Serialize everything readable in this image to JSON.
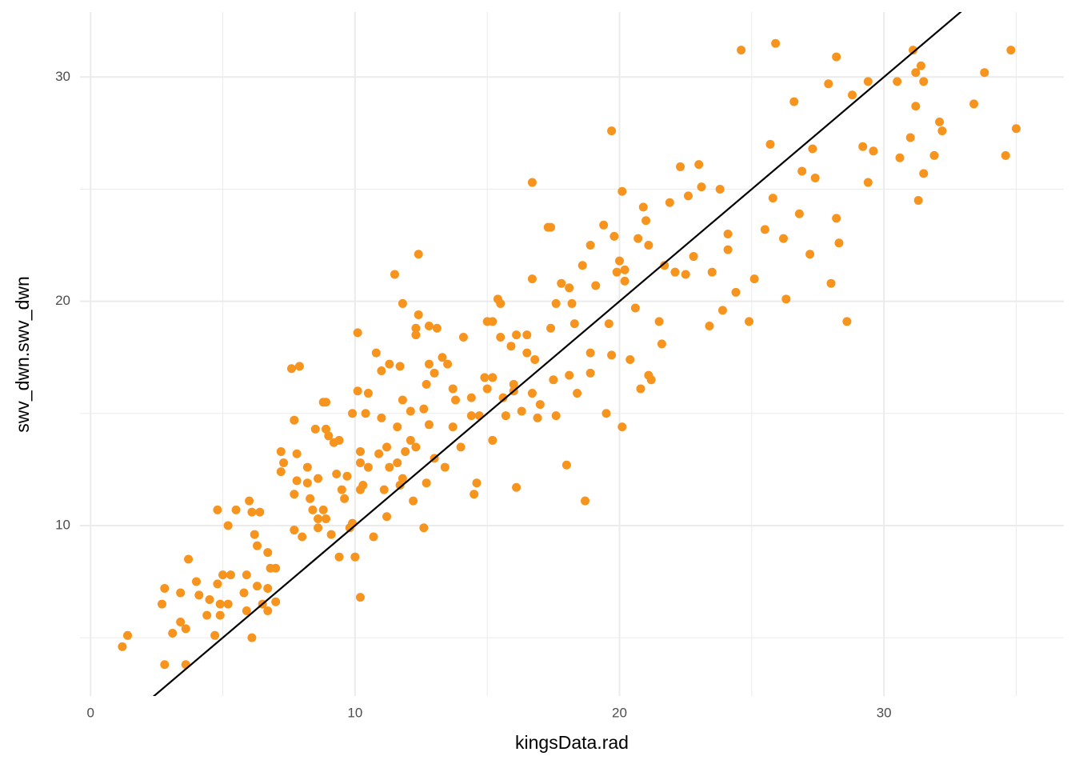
{
  "chart_data": {
    "type": "scatter",
    "x_label": "kingsData.rad",
    "y_label": "swv_dwn.swv_dwn",
    "color": "#f7941d",
    "xlim": [
      -0.4,
      36.8
    ],
    "ylim": [
      2.4,
      32.9
    ],
    "xticks": [
      0,
      10,
      20,
      30
    ],
    "yticks": [
      10,
      20,
      30
    ],
    "x_minor_grid": [
      5,
      15,
      25,
      35
    ],
    "y_minor_grid": [
      5,
      15,
      25
    ],
    "grid": true,
    "line": {
      "slope": 1,
      "intercept": 0,
      "color": "#000000"
    },
    "x": [
      1.2,
      1.4,
      2.8,
      2.7,
      2.8,
      3.1,
      3.4,
      3.4,
      3.6,
      3.6,
      3.7,
      4.0,
      4.1,
      4.4,
      4.5,
      4.7,
      4.8,
      4.8,
      4.9,
      4.9,
      5.0,
      5.2,
      5.2,
      5.3,
      5.5,
      5.8,
      5.9,
      5.9,
      6.0,
      6.1,
      6.1,
      6.2,
      6.3,
      6.3,
      6.4,
      6.5,
      6.7,
      6.7,
      6.7,
      6.8,
      7.0,
      7.0,
      7.2,
      7.2,
      7.3,
      7.6,
      7.7,
      7.7,
      7.7,
      7.9,
      7.8,
      7.8,
      8.0,
      8.2,
      8.2,
      8.3,
      8.4,
      8.5,
      8.6,
      8.6,
      8.6,
      8.8,
      8.8,
      8.9,
      8.9,
      8.9,
      9.0,
      9.1,
      9.2,
      9.3,
      9.4,
      9.4,
      9.5,
      9.6,
      9.7,
      9.8,
      9.9,
      9.9,
      10.0,
      10.1,
      10.1,
      10.2,
      10.2,
      10.2,
      10.2,
      10.3,
      10.4,
      10.5,
      10.5,
      10.7,
      10.8,
      10.9,
      11.0,
      11.0,
      11.1,
      11.2,
      11.2,
      11.3,
      11.3,
      11.5,
      11.6,
      11.6,
      11.7,
      11.7,
      11.8,
      11.8,
      11.8,
      11.9,
      12.1,
      12.1,
      12.2,
      12.3,
      12.3,
      12.3,
      12.4,
      12.4,
      12.6,
      12.6,
      12.7,
      12.7,
      12.8,
      12.8,
      12.8,
      13.0,
      13.0,
      13.1,
      13.3,
      13.4,
      13.5,
      13.7,
      13.7,
      13.8,
      14.0,
      14.1,
      14.4,
      14.4,
      14.5,
      14.6,
      14.7,
      14.9,
      15.0,
      15.0,
      15.2,
      15.2,
      15.2,
      15.4,
      15.5,
      15.5,
      15.6,
      15.7,
      15.9,
      16.0,
      16.0,
      16.1,
      16.1,
      16.3,
      16.5,
      16.5,
      16.7,
      16.7,
      16.7,
      16.8,
      16.9,
      17.0,
      17.3,
      17.4,
      17.4,
      17.5,
      17.6,
      17.6,
      17.8,
      18.0,
      18.1,
      18.1,
      18.2,
      18.3,
      18.4,
      18.6,
      18.7,
      18.9,
      18.9,
      18.9,
      19.1,
      19.4,
      19.5,
      19.6,
      19.7,
      19.7,
      19.8,
      19.9,
      20.0,
      20.1,
      20.1,
      20.2,
      20.2,
      20.4,
      20.6,
      20.7,
      20.8,
      20.9,
      21.0,
      21.1,
      21.1,
      21.2,
      21.5,
      21.6,
      21.7,
      21.9,
      22.1,
      22.3,
      22.5,
      22.6,
      22.8,
      23.0,
      23.1,
      23.4,
      23.5,
      23.8,
      23.9,
      24.1,
      24.1,
      24.4,
      24.6,
      24.9,
      25.1,
      25.5,
      25.7,
      25.8,
      25.9,
      26.2,
      26.3,
      26.6,
      26.8,
      26.9,
      27.2,
      27.3,
      27.4,
      27.9,
      28.0,
      28.2,
      28.2,
      28.3,
      28.6,
      28.8,
      29.2,
      29.4,
      29.6,
      29.4,
      30.5,
      30.6,
      31.0,
      31.1,
      31.2,
      31.2,
      31.3,
      31.4,
      31.5,
      31.5,
      31.9,
      32.1,
      32.2,
      33.4,
      33.8,
      34.6,
      34.8,
      35.0
    ],
    "values": [
      4.6,
      5.1,
      7.2,
      6.5,
      3.8,
      5.2,
      7.0,
      5.7,
      5.4,
      3.8,
      8.5,
      7.5,
      6.9,
      6.0,
      6.7,
      5.1,
      10.7,
      7.4,
      6.0,
      6.5,
      7.8,
      6.5,
      10.0,
      7.8,
      10.7,
      7.0,
      7.8,
      6.2,
      11.1,
      10.6,
      5.0,
      9.6,
      7.3,
      9.1,
      10.6,
      6.5,
      7.2,
      6.2,
      8.8,
      8.1,
      8.1,
      6.6,
      13.3,
      12.4,
      12.8,
      17.0,
      11.4,
      14.7,
      9.8,
      17.1,
      12.0,
      13.2,
      9.5,
      12.6,
      11.9,
      11.2,
      10.7,
      14.3,
      12.1,
      9.9,
      10.3,
      15.5,
      10.7,
      15.5,
      14.3,
      10.3,
      14.0,
      9.6,
      13.7,
      12.3,
      13.8,
      8.6,
      11.6,
      11.2,
      12.2,
      9.9,
      10.1,
      15.0,
      8.6,
      18.6,
      16.0,
      13.3,
      6.8,
      11.6,
      12.8,
      11.8,
      15.0,
      12.6,
      15.9,
      9.5,
      17.7,
      13.2,
      14.8,
      16.9,
      11.6,
      10.4,
      13.5,
      17.2,
      12.6,
      21.2,
      12.8,
      14.4,
      17.1,
      11.8,
      12.1,
      19.9,
      15.6,
      13.3,
      15.1,
      13.8,
      11.1,
      13.5,
      18.5,
      18.8,
      22.1,
      19.4,
      15.2,
      9.9,
      11.9,
      16.3,
      17.2,
      14.5,
      18.9,
      13.0,
      16.8,
      18.8,
      17.5,
      12.6,
      17.2,
      14.4,
      16.1,
      15.6,
      13.5,
      18.4,
      15.7,
      14.9,
      11.4,
      11.9,
      14.9,
      16.6,
      19.1,
      16.1,
      16.6,
      19.1,
      13.8,
      20.1,
      19.9,
      18.4,
      15.7,
      14.9,
      18.0,
      16.3,
      16.0,
      11.7,
      18.5,
      15.1,
      18.5,
      17.7,
      15.9,
      25.3,
      21.0,
      17.4,
      14.8,
      15.4,
      23.3,
      23.3,
      18.8,
      16.5,
      14.9,
      19.9,
      20.8,
      12.7,
      20.6,
      16.7,
      19.9,
      19.0,
      15.9,
      21.6,
      11.1,
      22.5,
      16.8,
      17.7,
      20.7,
      23.4,
      15.0,
      19.0,
      27.6,
      17.6,
      22.9,
      21.3,
      21.8,
      24.9,
      14.4,
      20.9,
      21.4,
      17.4,
      19.7,
      22.8,
      16.1,
      24.2,
      23.6,
      16.7,
      22.5,
      16.5,
      19.1,
      18.1,
      21.6,
      24.4,
      21.3,
      26.0,
      21.2,
      24.7,
      22.0,
      26.1,
      25.1,
      18.9,
      21.3,
      25.0,
      19.6,
      22.3,
      23.0,
      20.4,
      31.2,
      19.1,
      21.0,
      23.2,
      27.0,
      24.6,
      31.5,
      22.8,
      20.1,
      28.9,
      23.9,
      25.8,
      22.1,
      26.8,
      25.5,
      29.7,
      20.8,
      23.7,
      30.9,
      22.6,
      19.1,
      29.2,
      26.9,
      25.3,
      26.7,
      29.8,
      29.8,
      26.4,
      27.3,
      31.2,
      30.2,
      28.7,
      24.5,
      30.5,
      25.7,
      29.8,
      26.5,
      28.0,
      27.6,
      28.8,
      30.2,
      26.5,
      31.2,
      27.7
    ]
  }
}
